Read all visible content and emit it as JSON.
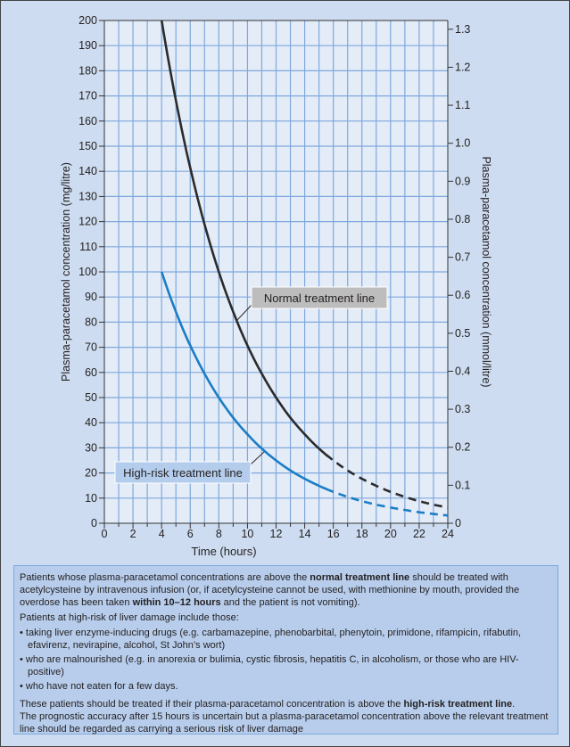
{
  "chart_data": {
    "type": "line",
    "xlabel": "Time (hours)",
    "ylabel": "Plasma-paracetamol concentration (mg/litre)",
    "ylabel_right": "Plasma-paracetamol concentration (mmol/litre)",
    "xlim": [
      0,
      24
    ],
    "ylim": [
      0,
      200
    ],
    "ylim_right": [
      0,
      1.3
    ],
    "x_ticks": [
      0,
      2,
      4,
      6,
      8,
      10,
      12,
      14,
      16,
      18,
      20,
      22,
      24
    ],
    "y_ticks": [
      0,
      10,
      20,
      30,
      40,
      50,
      60,
      70,
      80,
      90,
      100,
      110,
      120,
      130,
      140,
      150,
      160,
      170,
      180,
      190,
      200
    ],
    "y_ticks_right": [
      "0",
      "0.1",
      "0.2",
      "0.3",
      "0.4",
      "0.5",
      "0.6",
      "0.7",
      "0.8",
      "0.9",
      "1.0",
      "1.1",
      "1.2",
      "1.3"
    ],
    "mmol_to_mg": 151.17,
    "grid": true,
    "series": [
      {
        "name": "Normal treatment line",
        "color": "#2b2b2b",
        "solid_until": 15.5,
        "x": [
          4,
          5,
          6,
          7,
          8,
          9,
          10,
          11,
          12,
          13,
          14,
          15,
          16,
          17,
          18,
          19,
          20,
          21,
          22,
          23,
          24
        ],
        "y": [
          200,
          168.2,
          141.4,
          118.9,
          100,
          84.1,
          70.7,
          59.5,
          50,
          42.0,
          35.4,
          29.7,
          25,
          21.0,
          17.7,
          14.9,
          12.5,
          10.5,
          8.8,
          7.4,
          6.25
        ]
      },
      {
        "name": "High-risk treatment line",
        "color": "#1b7dc5",
        "solid_until": 15.5,
        "x": [
          4,
          5,
          6,
          7,
          8,
          9,
          10,
          11,
          12,
          13,
          14,
          15,
          16,
          17,
          18,
          19,
          20,
          21,
          22,
          23,
          24
        ],
        "y": [
          100,
          84.1,
          70.7,
          59.5,
          50,
          42.0,
          35.4,
          29.7,
          25,
          21.0,
          17.7,
          14.9,
          12.5,
          10.5,
          8.8,
          7.4,
          6.25,
          5.3,
          4.4,
          3.7,
          3.1
        ]
      }
    ]
  },
  "notes": {
    "p1_a": "Patients whose plasma-paracetamol concentrations are above the ",
    "p1_b": "normal treatment line",
    "p1_c": " should be treated with acetylcysteine by intravenous infusion (or, if acetylcysteine cannot be used, with methionine by mouth, provided the overdose has been taken ",
    "p1_d": "within 10–12 hours",
    "p1_e": " and the patient is not vomiting).",
    "p2": "Patients at high-risk of liver damage include those:",
    "bullets": [
      "taking liver enzyme-inducing drugs (e.g. carbamazepine, phenobarbital, phenytoin, primidone, rifampicin, rifabutin, efavirenz, nevirapine, alcohol, St John’s wort)",
      "who are malnourished (e.g. in anorexia or bulimia, cystic fibrosis, hepatitis C, in alcoholism, or those who are HIV-positive)",
      "who have not eaten for a few days."
    ],
    "p3_a": "These patients should be treated if their plasma-paracetamol concentration is above the ",
    "p3_b": "high-risk treatment line",
    "p3_c": ".",
    "p4": "The prognostic accuracy after 15 hours is uncertain but a plasma-paracetamol concentration above the relevant treatment line should be regarded as carrying a serious risk of liver damage"
  }
}
